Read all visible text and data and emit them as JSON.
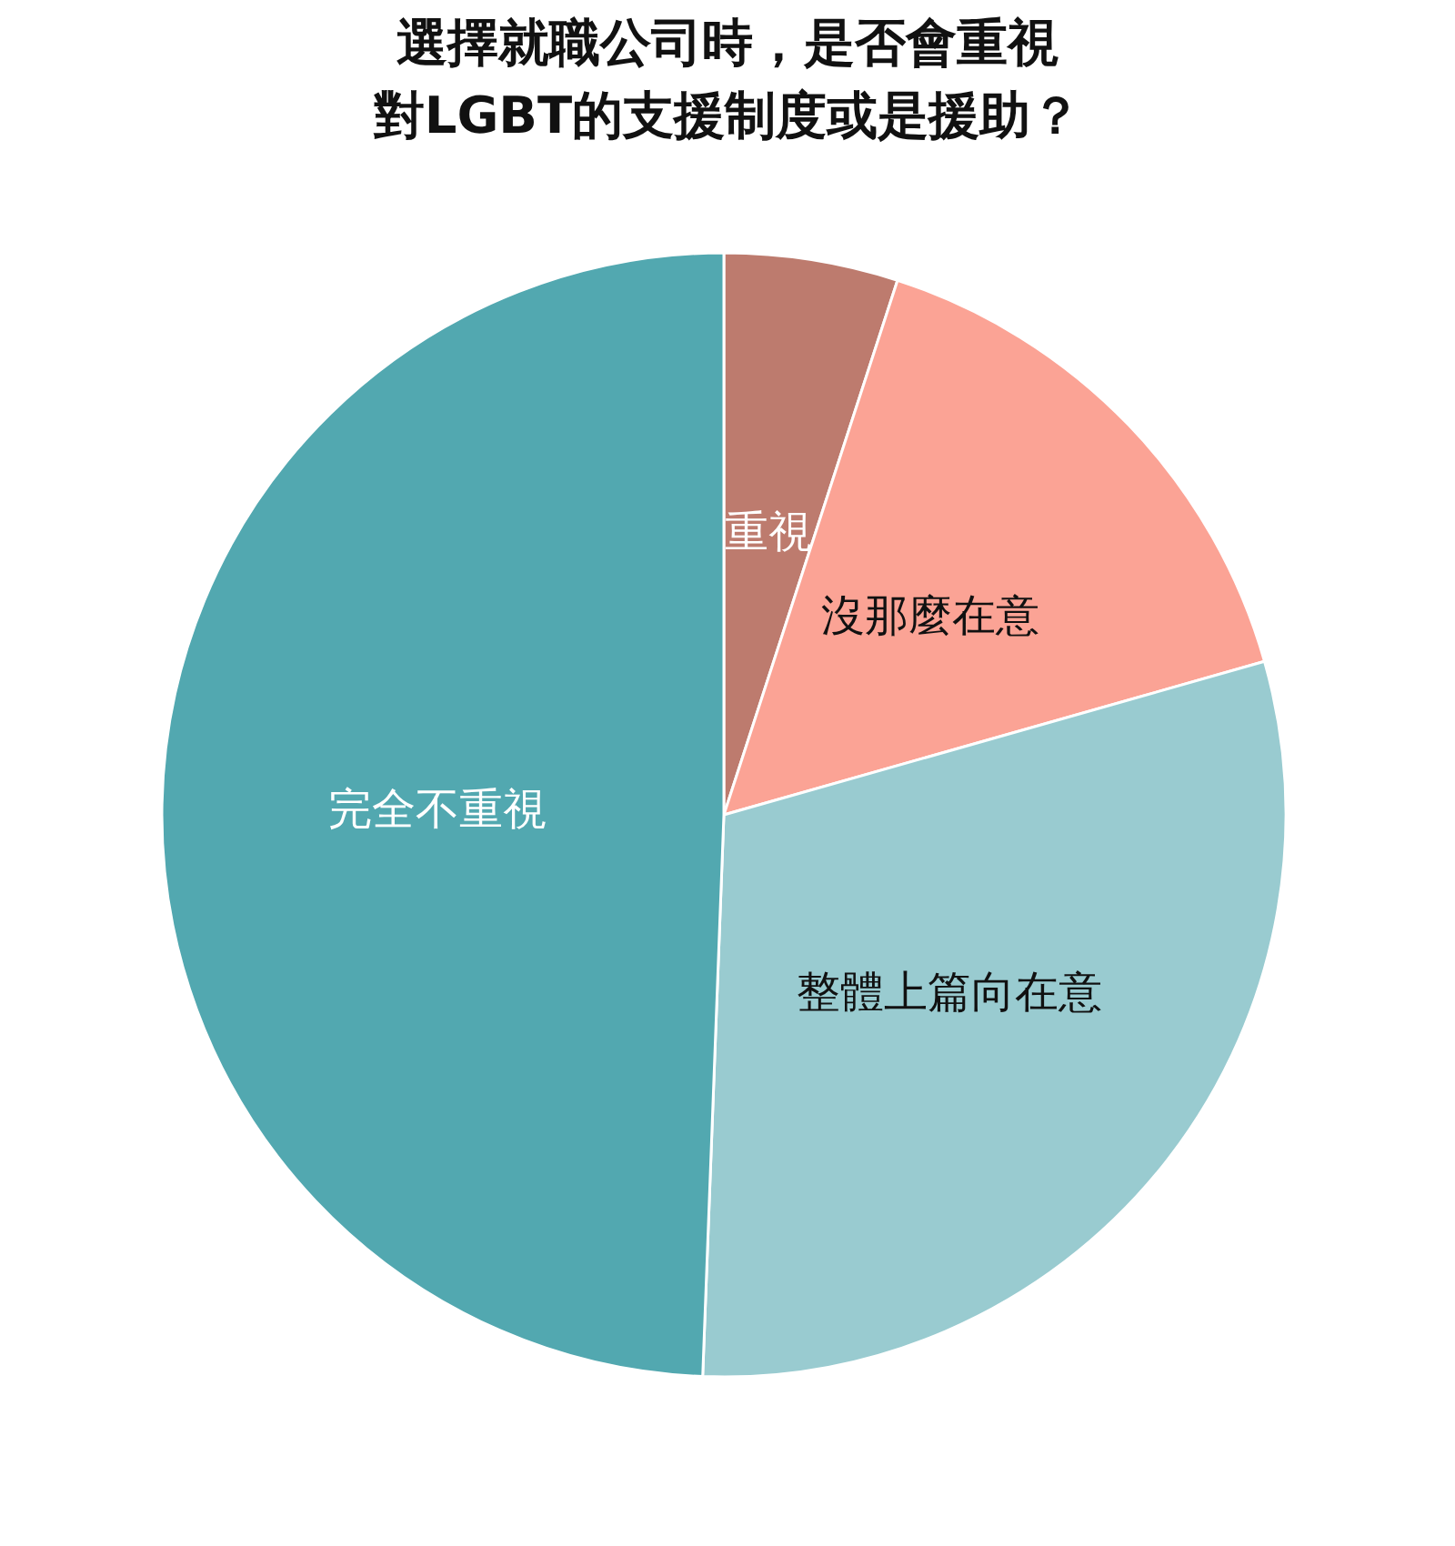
{
  "chart_data": {
    "type": "pie",
    "title": "選擇就職公司時，是否會重視對LGBT的支援制度或是援助？",
    "categories": [
      "重視",
      "沒那麼在意",
      "整體上篇向在意",
      "完全不重視"
    ],
    "values": [
      5,
      15.6,
      30,
      49.4
    ],
    "colors": [
      "#bd7b6e",
      "#fba395",
      "#99cbd0",
      "#52a8b0"
    ]
  }
}
